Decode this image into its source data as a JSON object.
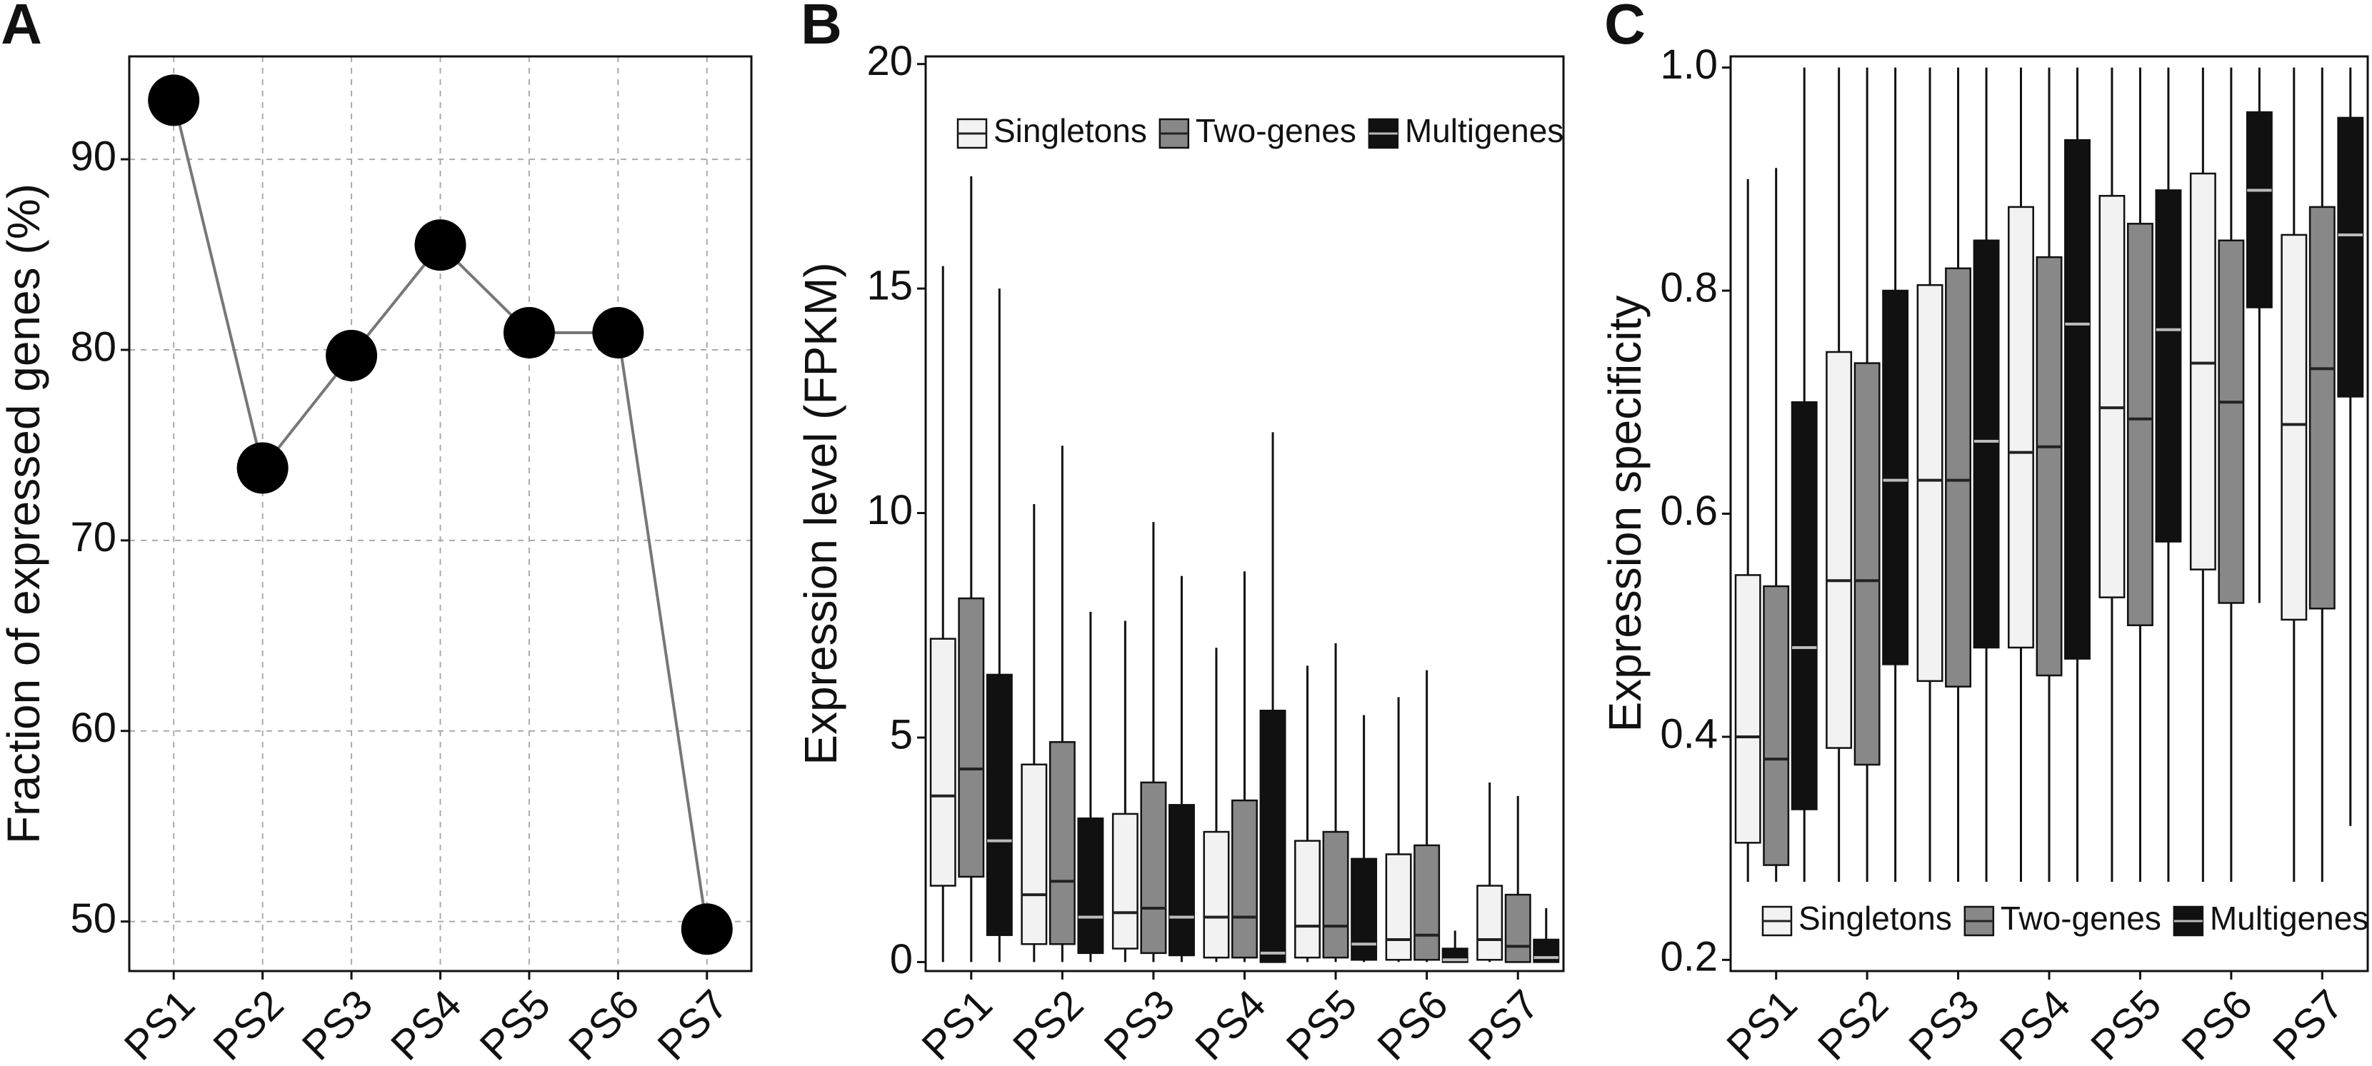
{
  "chart_data": [
    {
      "type": "line",
      "title": "A",
      "ylabel": "Fraction of expressed genes (%)",
      "categories": [
        "PS1",
        "PS2",
        "PS3",
        "PS4",
        "PS5",
        "PS6",
        "PS7"
      ],
      "values": [
        93.1,
        73.8,
        79.7,
        85.5,
        80.9,
        80.9,
        49.6
      ],
      "color": "#000000",
      "ylim": [
        47.4,
        95.4
      ],
      "yticks": [
        50,
        60,
        70,
        80,
        90
      ],
      "grid": true
    },
    {
      "type": "box",
      "title": "B",
      "ylabel": "Expression level (FPKM)",
      "categories": [
        "PS1",
        "PS2",
        "PS3",
        "PS4",
        "PS5",
        "PS6",
        "PS7"
      ],
      "ylim": [
        -0.2,
        20.17
      ],
      "yticks": [
        0,
        5,
        10,
        15,
        20
      ],
      "grid": false,
      "legend": "top",
      "series": [
        {
          "name": "Singletons",
          "color": "#f2f2f2",
          "q1": [
            1.7,
            0.4,
            0.3,
            0.1,
            0.1,
            0.05,
            0.05
          ],
          "median": [
            3.7,
            1.5,
            1.1,
            1.0,
            0.8,
            0.5,
            0.5
          ],
          "q3": [
            7.2,
            4.4,
            3.3,
            2.9,
            2.7,
            2.4,
            1.7
          ],
          "whisker_low": [
            0,
            0,
            0,
            0,
            0,
            0,
            0
          ],
          "whisker_high": [
            15.5,
            10.2,
            7.6,
            7.0,
            6.6,
            5.9,
            4.0
          ]
        },
        {
          "name": "Two-genes",
          "color": "#888888",
          "q1": [
            1.9,
            0.4,
            0.2,
            0.1,
            0.1,
            0.05,
            0
          ],
          "median": [
            4.3,
            1.8,
            1.2,
            1.0,
            0.8,
            0.6,
            0.35
          ],
          "q3": [
            8.1,
            4.9,
            4.0,
            3.6,
            2.9,
            2.6,
            1.5
          ],
          "whisker_low": [
            0,
            0,
            0,
            0,
            0,
            0,
            0
          ],
          "whisker_high": [
            17.5,
            11.5,
            9.8,
            8.7,
            7.1,
            6.5,
            3.7
          ]
        },
        {
          "name": "Multigenes",
          "color": "#111111",
          "q1": [
            0.6,
            0.2,
            0.15,
            0,
            0.05,
            0,
            0
          ],
          "median": [
            2.7,
            1.0,
            1.0,
            0.2,
            0.4,
            0.05,
            0.1
          ],
          "q3": [
            6.4,
            3.2,
            3.5,
            5.6,
            2.3,
            0.3,
            0.5
          ],
          "whisker_low": [
            0,
            0,
            0,
            0,
            0,
            0,
            0
          ],
          "whisker_high": [
            15,
            7.8,
            8.6,
            11.8,
            5.5,
            0.7,
            1.2
          ]
        }
      ]
    },
    {
      "type": "box",
      "title": "C",
      "ylabel": "Expression specificity",
      "categories": [
        "PS1",
        "PS2",
        "PS3",
        "PS4",
        "PS5",
        "PS6",
        "PS7"
      ],
      "ylim": [
        0.19,
        1.01
      ],
      "yticks": [
        0.2,
        0.4,
        0.6,
        0.8,
        {
          "value": 1,
          "label": "1.0"
        }
      ],
      "grid": false,
      "legend": "bottom",
      "series": [
        {
          "name": "Singletons",
          "color": "#f2f2f2",
          "q1": [
            0.305,
            0.39,
            0.45,
            0.48,
            0.525,
            0.55,
            0.505
          ],
          "median": [
            0.4,
            0.54,
            0.63,
            0.655,
            0.695,
            0.735,
            0.68
          ],
          "q3": [
            0.545,
            0.745,
            0.805,
            0.875,
            0.885,
            0.905,
            0.85
          ],
          "whisker_low": [
            0.27,
            0.27,
            0.27,
            0.27,
            0.27,
            0.27,
            0.27
          ],
          "whisker_high": [
            0.9,
            1,
            1,
            1,
            1,
            1,
            1
          ]
        },
        {
          "name": "Two-genes",
          "color": "#888888",
          "q1": [
            0.285,
            0.375,
            0.445,
            0.455,
            0.5,
            0.52,
            0.515
          ],
          "median": [
            0.38,
            0.54,
            0.63,
            0.66,
            0.685,
            0.7,
            0.73
          ],
          "q3": [
            0.535,
            0.735,
            0.82,
            0.83,
            0.86,
            0.845,
            0.875
          ],
          "whisker_low": [
            0.27,
            0.27,
            0.27,
            0.27,
            0.27,
            0.27,
            0.27
          ],
          "whisker_high": [
            0.91,
            1,
            1,
            1,
            1,
            1,
            1
          ]
        },
        {
          "name": "Multigenes",
          "color": "#111111",
          "q1": [
            0.335,
            0.465,
            0.48,
            0.47,
            0.575,
            0.785,
            0.705
          ],
          "median": [
            0.48,
            0.63,
            0.665,
            0.77,
            0.765,
            0.89,
            0.85
          ],
          "q3": [
            0.7,
            0.8,
            0.845,
            0.935,
            0.89,
            0.96,
            0.955
          ],
          "whisker_low": [
            0.27,
            0.27,
            0.27,
            0.27,
            0.27,
            0.52,
            0.32
          ],
          "whisker_high": [
            1,
            1,
            1,
            1,
            1,
            1,
            1
          ]
        }
      ]
    }
  ]
}
